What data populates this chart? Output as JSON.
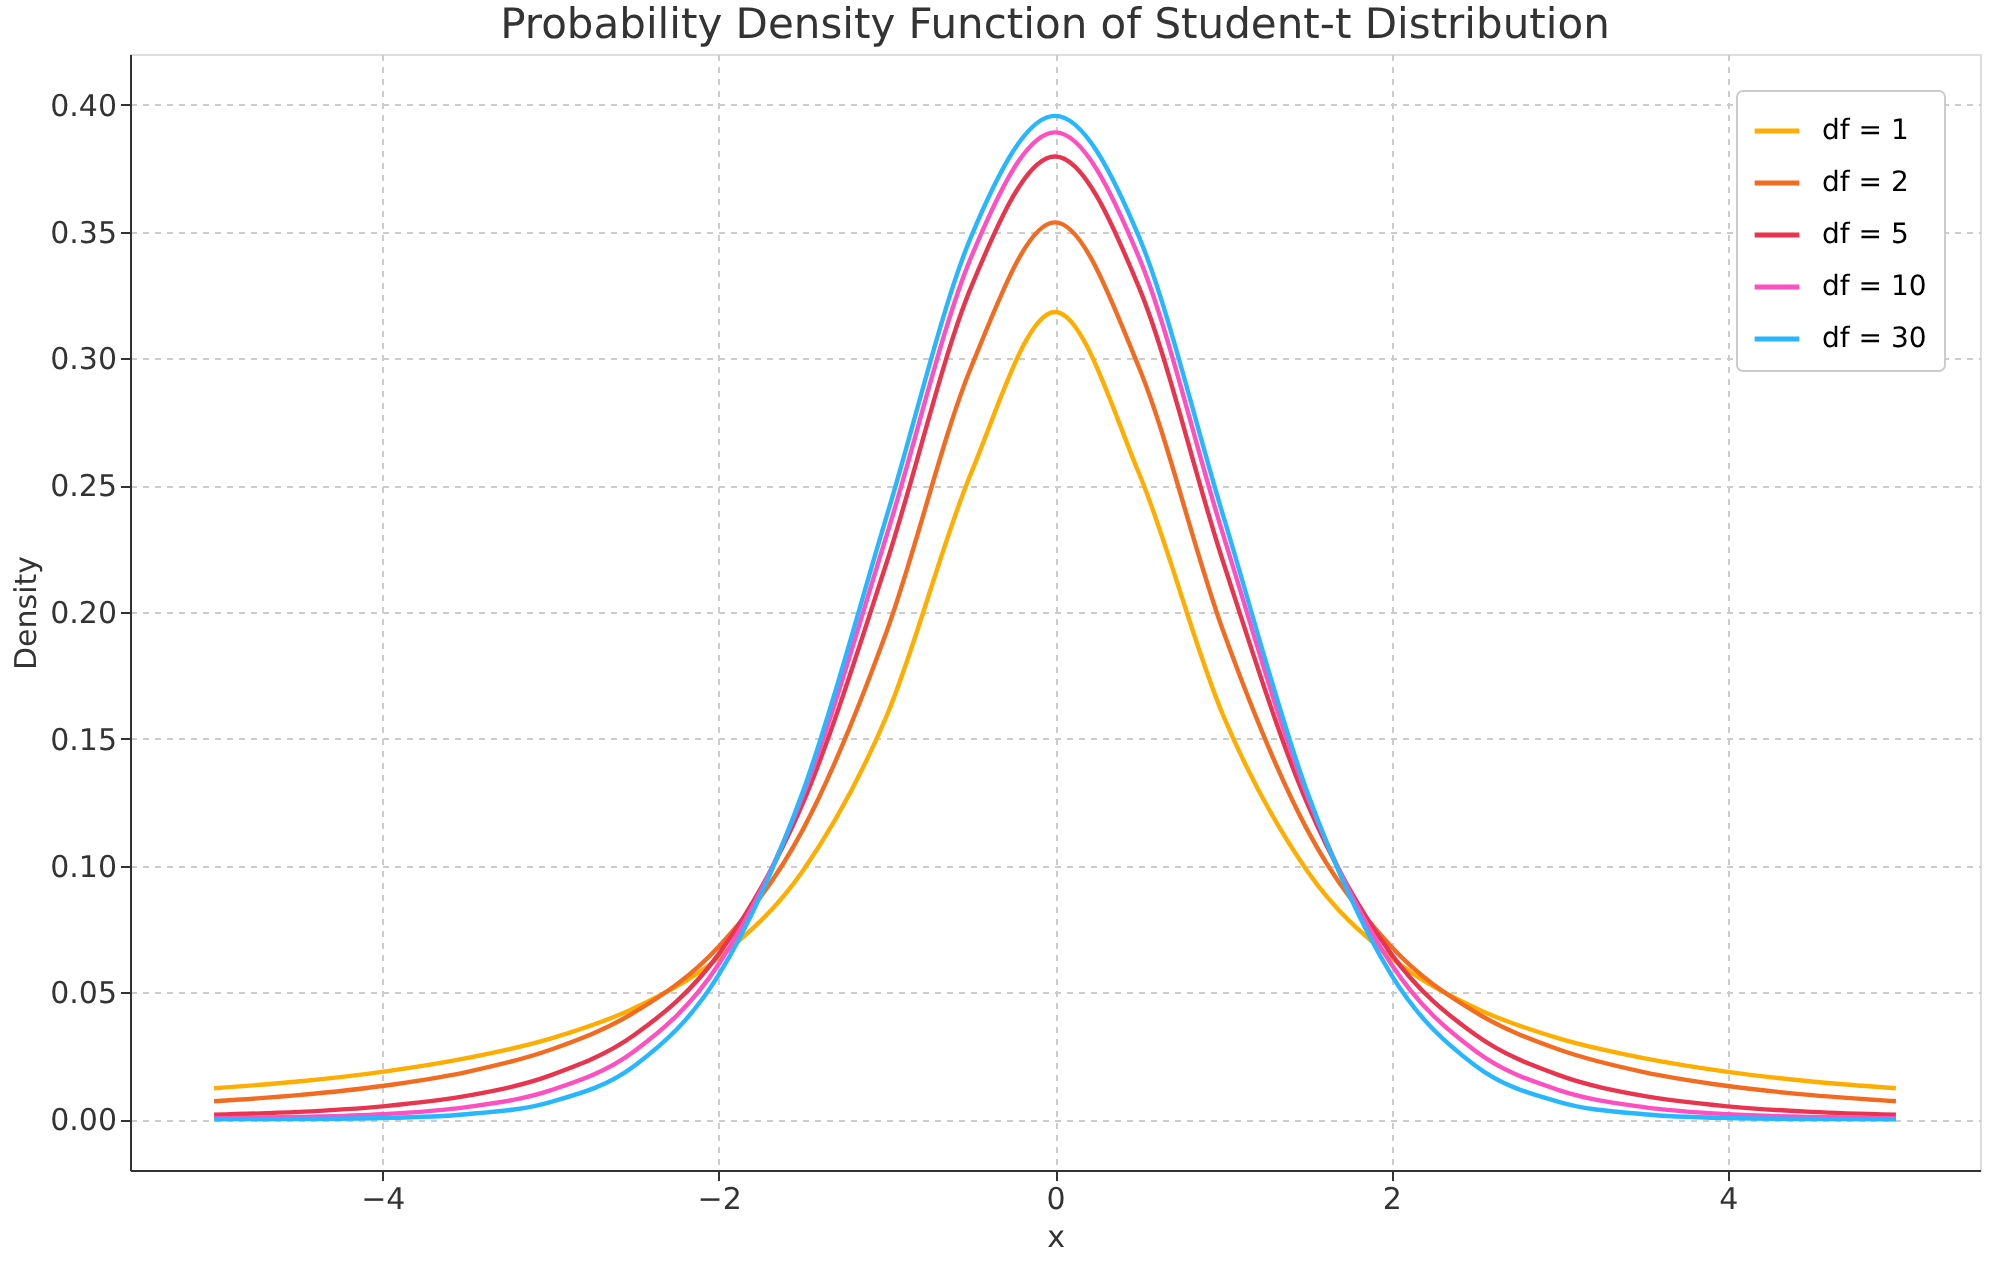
{
  "chart_data": {
    "type": "line",
    "title": "Probability Density Function of Student-t Distribution",
    "xlabel": "x",
    "ylabel": "Density",
    "x": [
      -5,
      -4.5,
      -4,
      -3.5,
      -3,
      -2.5,
      -2,
      -1.5,
      -1,
      -0.5,
      0,
      0.5,
      1,
      1.5,
      2,
      2.5,
      3,
      3.5,
      4,
      4.5,
      5
    ],
    "series": [
      {
        "name": "df = 1",
        "color": "#ffae00",
        "values": [
          0.0122,
          0.0149,
          0.0187,
          0.0241,
          0.0318,
          0.0439,
          0.0637,
          0.0979,
          0.1592,
          0.2546,
          0.3183,
          0.2546,
          0.1592,
          0.0979,
          0.0637,
          0.0439,
          0.0318,
          0.0241,
          0.0187,
          0.0149,
          0.0122
        ]
      },
      {
        "name": "df = 2",
        "color": "#f26b21",
        "values": [
          0.0071,
          0.0095,
          0.0131,
          0.0186,
          0.0274,
          0.0422,
          0.068,
          0.1141,
          0.1925,
          0.2963,
          0.3536,
          0.2963,
          0.1925,
          0.1141,
          0.068,
          0.0422,
          0.0274,
          0.0186,
          0.0131,
          0.0095,
          0.0071
        ]
      },
      {
        "name": "df = 5",
        "color": "#e8344e",
        "values": [
          0.0018,
          0.0029,
          0.0051,
          0.0092,
          0.0173,
          0.0333,
          0.0651,
          0.1245,
          0.2197,
          0.3279,
          0.3796,
          0.3279,
          0.2197,
          0.1245,
          0.0651,
          0.0333,
          0.0173,
          0.0092,
          0.0051,
          0.0029,
          0.0018
        ]
      },
      {
        "name": "df = 10",
        "color": "#ff4fc0",
        "values": [
          0.0004,
          0.0009,
          0.002,
          0.0048,
          0.0114,
          0.0269,
          0.0611,
          0.1275,
          0.2304,
          0.3397,
          0.3891,
          0.3397,
          0.2304,
          0.1275,
          0.0611,
          0.0269,
          0.0114,
          0.0048,
          0.002,
          0.0009,
          0.0004
        ]
      },
      {
        "name": "df = 30",
        "color": "#27b7ff",
        "values": [
          0.0,
          0.0001,
          0.0005,
          0.002,
          0.0068,
          0.0211,
          0.0569,
          0.129,
          0.238,
          0.3478,
          0.3956,
          0.3478,
          0.238,
          0.129,
          0.0569,
          0.0211,
          0.0068,
          0.002,
          0.0005,
          0.0001,
          0.0
        ]
      }
    ],
    "xlim": [
      -5.5,
      5.5
    ],
    "xticks": [
      {
        "value": -4,
        "label": "−4"
      },
      {
        "value": -2,
        "label": "−2"
      },
      0,
      2,
      4
    ],
    "ylim": [
      -0.02,
      0.42
    ],
    "yticks": [
      {
        "value": 0,
        "label": "0.00"
      },
      {
        "value": 0.05,
        "label": "0.05"
      },
      {
        "value": 0.1,
        "label": "0.10"
      },
      {
        "value": 0.15,
        "label": "0.15"
      },
      {
        "value": 0.2,
        "label": "0.20"
      },
      {
        "value": 0.25,
        "label": "0.25"
      },
      {
        "value": 0.3,
        "label": "0.30"
      },
      {
        "value": 0.35,
        "label": "0.35"
      },
      {
        "value": 0.4,
        "label": "0.40"
      }
    ],
    "grid": true,
    "legend": "top right",
    "line_style": "solid",
    "marker": "none"
  }
}
